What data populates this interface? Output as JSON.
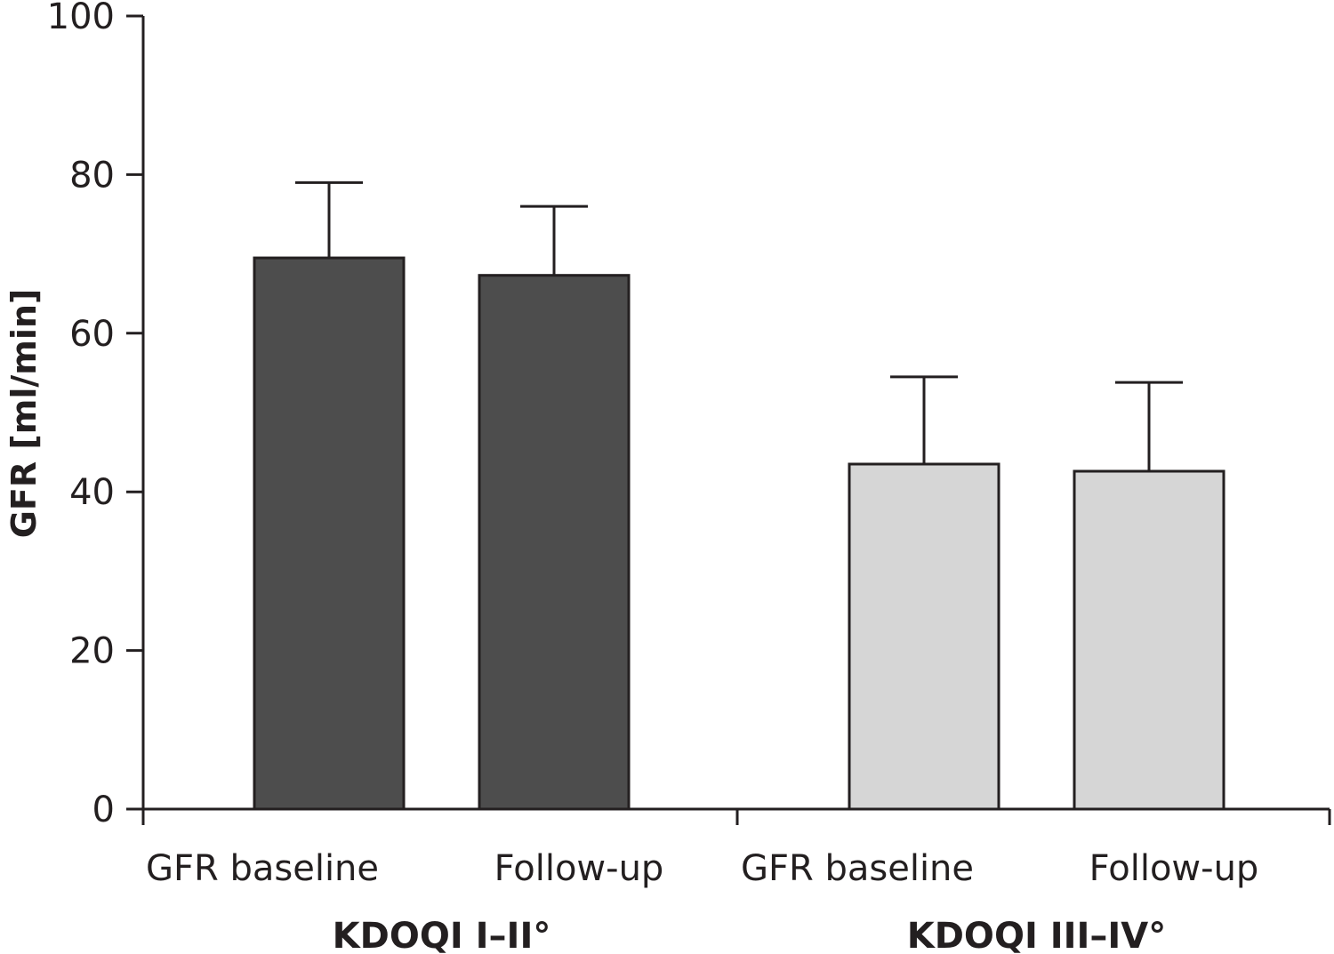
{
  "chart_data": {
    "type": "bar",
    "title": "",
    "xlabel": "",
    "ylabel": "GFR [ml/min]",
    "ylim": [
      0,
      100
    ],
    "yticks": [
      0,
      20,
      40,
      60,
      80,
      100
    ],
    "grid": false,
    "groups": [
      {
        "label": "KDOQI I–II°",
        "color": "#4d4d4d",
        "bars": [
          {
            "category": "GFR baseline",
            "value": 69.5,
            "error": 9.5
          },
          {
            "category": "Follow-up",
            "value": 67.3,
            "error": 8.7
          }
        ]
      },
      {
        "label": "KDOQI III–IV°",
        "color": "#d6d6d6",
        "bars": [
          {
            "category": "GFR baseline",
            "value": 43.5,
            "error": 11.0
          },
          {
            "category": "Follow-up",
            "value": 42.6,
            "error": 11.2
          }
        ]
      }
    ]
  }
}
